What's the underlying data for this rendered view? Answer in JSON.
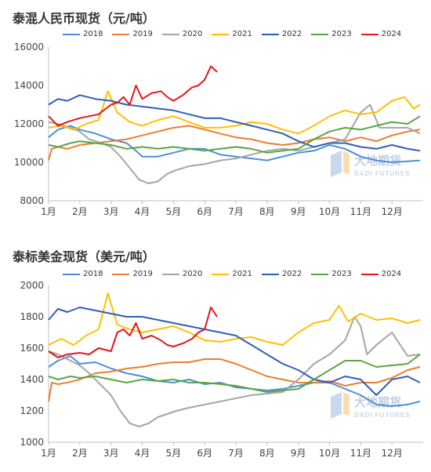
{
  "chart_data": [
    {
      "type": "line",
      "title": "泰混人民币现货（元/吨）",
      "x_tick_labels": [
        "1月",
        "2月",
        "3月",
        "4月",
        "5月",
        "6月",
        "7月",
        "8月",
        "9月",
        "10月",
        "11月",
        "12月"
      ],
      "y_ticks": [
        8000,
        10000,
        12000,
        14000,
        16000
      ],
      "ylim": [
        8000,
        16000
      ],
      "xlim": [
        1,
        13
      ],
      "grid": false,
      "legend_position": "top",
      "watermark": {
        "cn": "大地期货",
        "en": "DADI FUTURES"
      },
      "series": [
        {
          "name": "2018",
          "color": "#4a90d9",
          "x": [
            1,
            1.3,
            1.7,
            2,
            2.5,
            3,
            3.5,
            3.8,
            4,
            4.5,
            5,
            5.5,
            6,
            6.5,
            7,
            7.5,
            8,
            8.5,
            9,
            9.5,
            10,
            10.5,
            11,
            11.5,
            12,
            12.5,
            12.9
          ],
          "y": [
            11300,
            11700,
            11900,
            11700,
            11500,
            11200,
            11000,
            10600,
            10300,
            10300,
            10500,
            10700,
            10700,
            10400,
            10300,
            10200,
            10100,
            10300,
            10500,
            10600,
            10900,
            10700,
            10300,
            10100,
            10000,
            10050,
            10100
          ]
        },
        {
          "name": "2019",
          "color": "#ed7d31",
          "x": [
            1,
            1.1,
            1.3,
            1.6,
            2,
            2.5,
            3,
            3.5,
            4,
            4.5,
            5,
            5.5,
            6,
            6.5,
            7,
            7.5,
            8,
            8.5,
            9,
            9.5,
            10,
            10.5,
            11,
            11.5,
            12,
            12.5,
            12.9
          ],
          "y": [
            10100,
            10700,
            10800,
            10700,
            10900,
            11000,
            11100,
            11200,
            11400,
            11600,
            11800,
            11900,
            11700,
            11500,
            11300,
            11200,
            11000,
            10900,
            11000,
            11200,
            11300,
            11100,
            11300,
            11100,
            11400,
            11600,
            11700
          ]
        },
        {
          "name": "2020",
          "color": "#a5a5a5",
          "x": [
            1,
            1.3,
            1.7,
            2,
            2.3,
            2.7,
            3,
            3.3,
            3.6,
            3.9,
            4.2,
            4.5,
            4.8,
            5.1,
            5.5,
            6,
            6.5,
            7,
            7.5,
            8,
            8.5,
            9,
            9.5,
            10,
            10.5,
            11,
            11.3,
            11.6,
            12,
            12.5,
            12.9
          ],
          "y": [
            12100,
            12000,
            11800,
            11600,
            11200,
            11000,
            10800,
            10300,
            9700,
            9100,
            8900,
            9000,
            9400,
            9600,
            9800,
            9900,
            10100,
            10200,
            10400,
            10600,
            10700,
            10600,
            10800,
            11000,
            11200,
            12600,
            13000,
            11800,
            11800,
            11800,
            11500
          ]
        },
        {
          "name": "2021",
          "color": "#ffc000",
          "x": [
            1,
            1.4,
            1.8,
            2.2,
            2.6,
            2.9,
            3.2,
            3.6,
            4,
            4.5,
            5,
            5.5,
            6,
            6.5,
            7,
            7.5,
            8,
            8.5,
            9,
            9.5,
            10,
            10.5,
            11,
            11.5,
            12,
            12.4,
            12.7,
            12.9
          ],
          "y": [
            11800,
            11900,
            11700,
            12000,
            12200,
            13700,
            12600,
            12100,
            11900,
            12200,
            12400,
            12100,
            11800,
            11800,
            11900,
            12100,
            12000,
            11700,
            11500,
            11900,
            12400,
            12700,
            12500,
            12600,
            13200,
            13400,
            12800,
            13000
          ]
        },
        {
          "name": "2022",
          "color": "#2e5fb8",
          "x": [
            1,
            1.3,
            1.6,
            2,
            2.5,
            3,
            3.5,
            4,
            4.5,
            5,
            5.5,
            6,
            6.5,
            7,
            7.5,
            8,
            8.5,
            9,
            9.5,
            10,
            10.5,
            11,
            11.5,
            12,
            12.5,
            12.9
          ],
          "y": [
            13000,
            13300,
            13200,
            13500,
            13300,
            13200,
            13000,
            12900,
            12800,
            12700,
            12500,
            12300,
            12300,
            12100,
            11900,
            11700,
            11500,
            11100,
            10800,
            11000,
            11000,
            10800,
            10700,
            10900,
            10700,
            10600
          ]
        },
        {
          "name": "2023",
          "color": "#5aa642",
          "x": [
            1,
            1.3,
            1.7,
            2,
            2.5,
            3,
            3.5,
            4,
            4.5,
            5,
            5.5,
            6,
            6.5,
            7,
            7.5,
            8,
            8.5,
            9,
            9.5,
            10,
            10.5,
            11,
            11.5,
            12,
            12.5,
            12.9
          ],
          "y": [
            10900,
            10800,
            11000,
            11100,
            11000,
            10900,
            10700,
            10800,
            10700,
            10800,
            10700,
            10600,
            10700,
            10800,
            10700,
            10500,
            10600,
            10700,
            11200,
            11600,
            11800,
            11700,
            11900,
            12100,
            12000,
            12400
          ]
        },
        {
          "name": "2024",
          "color": "#e4151b",
          "x": [
            1,
            1.3,
            1.6,
            2,
            2.3,
            2.6,
            3,
            3.2,
            3.4,
            3.6,
            3.8,
            4,
            4.3,
            4.6,
            4.8,
            5,
            5.3,
            5.6,
            5.8,
            6,
            6.2,
            6.4
          ],
          "y": [
            12400,
            11900,
            12100,
            12300,
            12400,
            12500,
            13000,
            13100,
            13400,
            13000,
            14000,
            13300,
            13600,
            13700,
            13400,
            13200,
            13500,
            13900,
            14000,
            14300,
            15000,
            14700
          ]
        }
      ]
    },
    {
      "type": "line",
      "title": "泰标美金现货（美元/吨）",
      "x_tick_labels": [
        "1月",
        "2月",
        "3月",
        "4月",
        "5月",
        "6月",
        "7月",
        "8月",
        "9月",
        "10月",
        "11月",
        "12月"
      ],
      "y_ticks": [
        1000,
        1200,
        1400,
        1600,
        1800,
        2000
      ],
      "ylim": [
        1000,
        2000
      ],
      "xlim": [
        1,
        13
      ],
      "grid": false,
      "legend_position": "top",
      "watermark": {
        "cn": "大地期货",
        "en": "DADI FUTURES"
      },
      "series": [
        {
          "name": "2018",
          "color": "#4a90d9",
          "x": [
            1,
            1.3,
            1.7,
            2,
            2.5,
            3,
            3.5,
            4,
            4.5,
            5,
            5.5,
            6,
            6.5,
            7,
            7.5,
            8,
            8.5,
            9,
            9.5,
            10,
            10.5,
            11,
            11.5,
            12,
            12.5,
            12.9
          ],
          "y": [
            1480,
            1520,
            1550,
            1500,
            1510,
            1470,
            1440,
            1420,
            1390,
            1380,
            1400,
            1370,
            1380,
            1350,
            1340,
            1330,
            1340,
            1360,
            1380,
            1380,
            1340,
            1300,
            1240,
            1230,
            1240,
            1260
          ]
        },
        {
          "name": "2019",
          "color": "#ed7d31",
          "x": [
            1,
            1.1,
            1.3,
            1.6,
            2,
            2.5,
            3,
            3.5,
            4,
            4.5,
            5,
            5.5,
            6,
            6.5,
            7,
            7.5,
            8,
            8.5,
            9,
            9.5,
            10,
            10.5,
            11,
            11.5,
            12,
            12.5,
            12.9
          ],
          "y": [
            1260,
            1380,
            1370,
            1380,
            1400,
            1440,
            1450,
            1470,
            1480,
            1500,
            1510,
            1510,
            1530,
            1530,
            1500,
            1460,
            1420,
            1400,
            1380,
            1380,
            1390,
            1360,
            1380,
            1380,
            1410,
            1460,
            1480
          ]
        },
        {
          "name": "2020",
          "color": "#a5a5a5",
          "x": [
            1,
            1.3,
            1.7,
            2,
            2.3,
            2.6,
            3,
            3.3,
            3.6,
            3.9,
            4.2,
            4.5,
            4.8,
            5.1,
            5.5,
            6,
            6.5,
            7,
            7.5,
            8,
            8.5,
            9,
            9.5,
            10,
            10.5,
            10.8,
            11,
            11.2,
            11.5,
            12,
            12.5,
            12.9
          ],
          "y": [
            1580,
            1560,
            1520,
            1490,
            1440,
            1380,
            1300,
            1200,
            1120,
            1100,
            1120,
            1160,
            1180,
            1200,
            1220,
            1240,
            1260,
            1280,
            1300,
            1310,
            1320,
            1400,
            1500,
            1560,
            1650,
            1800,
            1740,
            1560,
            1620,
            1700,
            1550,
            1560
          ]
        },
        {
          "name": "2021",
          "color": "#ffc000",
          "x": [
            1,
            1.4,
            1.8,
            2.2,
            2.6,
            2.9,
            3.2,
            3.6,
            4,
            4.5,
            5,
            5.5,
            6,
            6.5,
            7,
            7.5,
            8,
            8.5,
            9,
            9.5,
            10,
            10.3,
            10.6,
            11,
            11.5,
            12,
            12.5,
            12.9
          ],
          "y": [
            1620,
            1660,
            1620,
            1680,
            1720,
            1950,
            1750,
            1720,
            1700,
            1720,
            1740,
            1700,
            1650,
            1640,
            1660,
            1670,
            1640,
            1620,
            1700,
            1760,
            1780,
            1870,
            1770,
            1820,
            1780,
            1790,
            1760,
            1780
          ]
        },
        {
          "name": "2022",
          "color": "#2e5fb8",
          "x": [
            1,
            1.3,
            1.6,
            2,
            2.5,
            3,
            3.5,
            4,
            4.5,
            5,
            5.5,
            6,
            6.5,
            7,
            7.5,
            8,
            8.5,
            9,
            9.5,
            10,
            10.5,
            11,
            11.5,
            12,
            12.5,
            12.9
          ],
          "y": [
            1780,
            1850,
            1830,
            1860,
            1840,
            1820,
            1800,
            1800,
            1780,
            1760,
            1740,
            1720,
            1700,
            1680,
            1620,
            1560,
            1500,
            1460,
            1400,
            1380,
            1420,
            1400,
            1300,
            1400,
            1420,
            1380
          ]
        },
        {
          "name": "2023",
          "color": "#5aa642",
          "x": [
            1,
            1.3,
            1.7,
            2,
            2.5,
            3,
            3.5,
            4,
            4.5,
            5,
            5.5,
            6,
            6.5,
            7,
            7.5,
            8,
            8.5,
            9,
            9.5,
            10,
            10.5,
            11,
            11.5,
            12,
            12.5,
            12.9
          ],
          "y": [
            1420,
            1400,
            1420,
            1410,
            1420,
            1400,
            1380,
            1400,
            1390,
            1400,
            1380,
            1380,
            1370,
            1360,
            1340,
            1320,
            1330,
            1340,
            1400,
            1460,
            1520,
            1520,
            1480,
            1490,
            1500,
            1560
          ]
        },
        {
          "name": "2024",
          "color": "#e4151b",
          "x": [
            1,
            1.3,
            1.6,
            2,
            2.3,
            2.6,
            3,
            3.2,
            3.4,
            3.6,
            3.8,
            4,
            4.3,
            4.6,
            4.8,
            5,
            5.3,
            5.6,
            5.8,
            6,
            6.2,
            6.4
          ],
          "y": [
            1580,
            1540,
            1560,
            1570,
            1560,
            1600,
            1580,
            1700,
            1720,
            1680,
            1760,
            1660,
            1680,
            1650,
            1620,
            1610,
            1630,
            1660,
            1700,
            1720,
            1860,
            1800
          ]
        }
      ]
    }
  ]
}
